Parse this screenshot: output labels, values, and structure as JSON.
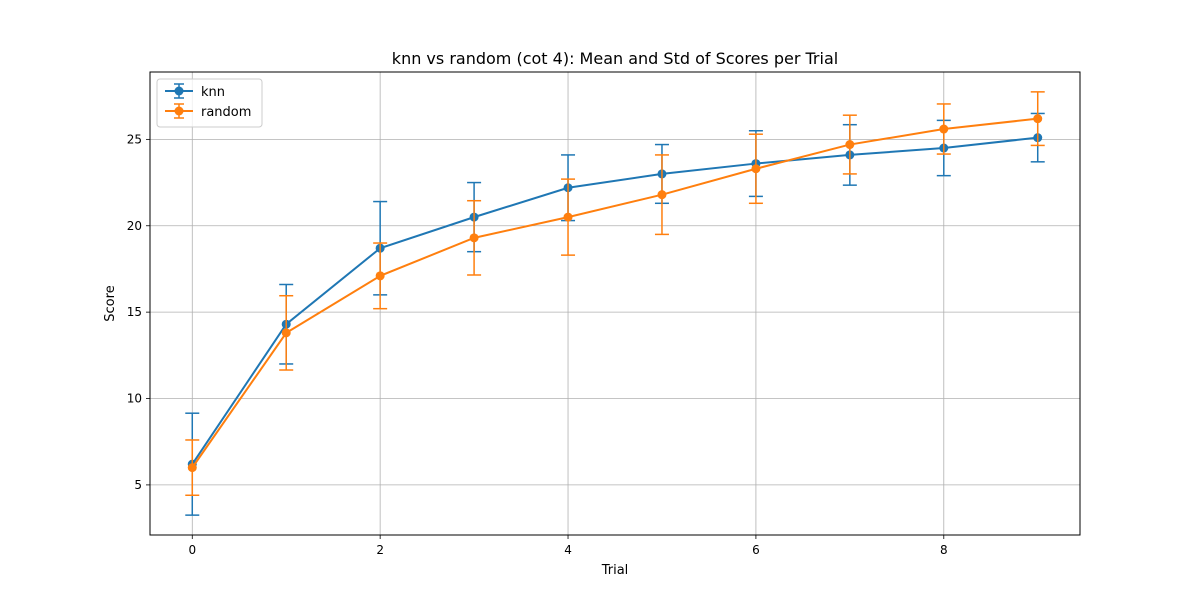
{
  "chart_data": {
    "type": "line",
    "title": "knn vs random (cot 4): Mean and Std of Scores per Trial",
    "xlabel": "Trial",
    "ylabel": "Score",
    "x": [
      0,
      1,
      2,
      3,
      4,
      5,
      6,
      7,
      8,
      9
    ],
    "xlim": [
      -0.45,
      9.45
    ],
    "ylim": [
      2.1,
      28.9
    ],
    "xticks": [
      0,
      2,
      4,
      6,
      8
    ],
    "yticks": [
      5,
      10,
      15,
      20,
      25
    ],
    "grid": true,
    "legend_position": "top-left",
    "series": [
      {
        "name": "knn",
        "color": "#1f77b4",
        "values": [
          6.2,
          14.3,
          18.7,
          20.5,
          22.2,
          23.0,
          23.6,
          24.1,
          24.5,
          25.1
        ],
        "std": [
          2.95,
          2.3,
          2.7,
          2.0,
          1.9,
          1.7,
          1.9,
          1.75,
          1.6,
          1.4
        ]
      },
      {
        "name": "random",
        "color": "#ff7f0e",
        "values": [
          6.0,
          13.8,
          17.1,
          19.3,
          20.5,
          21.8,
          23.3,
          24.7,
          25.6,
          26.2
        ],
        "std": [
          1.6,
          2.15,
          1.9,
          2.15,
          2.2,
          2.3,
          2.0,
          1.7,
          1.45,
          1.55
        ]
      }
    ]
  }
}
